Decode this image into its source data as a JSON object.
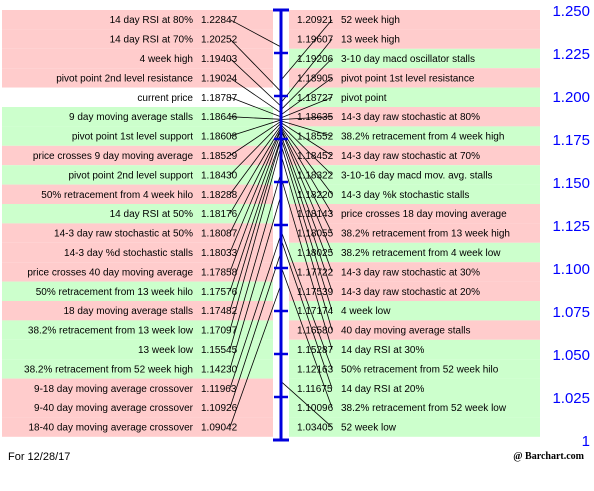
{
  "chart_data": {
    "type": "cheat-sheet",
    "date_label": "For 12/28/17",
    "watermark": "@ Barchart.com",
    "ylim": [
      1.0,
      1.25
    ],
    "ticks": [
      "1.250",
      "1.225",
      "1.200",
      "1.175",
      "1.150",
      "1.125",
      "1.100",
      "1.075",
      "1.050",
      "1.025",
      "1"
    ],
    "tick_values": [
      1.25,
      1.225,
      1.2,
      1.175,
      1.15,
      1.125,
      1.1,
      1.075,
      1.05,
      1.025,
      1.0
    ],
    "current_price": 1.18787,
    "colors": {
      "resistance_bg": "#ffcccc",
      "support_bg": "#ccffcc",
      "axis": "#0000dd",
      "tick_text": "#0000ff"
    },
    "left": [
      {
        "label": "14 day RSI at 80%",
        "value": "1.22847",
        "type": "res"
      },
      {
        "label": "14 day RSI at 70%",
        "value": "1.20252",
        "type": "res"
      },
      {
        "label": "4 week high",
        "value": "1.19403",
        "type": "res"
      },
      {
        "label": "pivot point 2nd level resistance",
        "value": "1.19024",
        "type": "res"
      },
      {
        "label": "current price",
        "value": "1.18787",
        "type": "cur"
      },
      {
        "label": "9 day moving average stalls",
        "value": "1.18646",
        "type": "sup"
      },
      {
        "label": "pivot point 1st level support",
        "value": "1.18608",
        "type": "sup"
      },
      {
        "label": "price crosses 9 day moving average",
        "value": "1.18529",
        "type": "res"
      },
      {
        "label": "pivot point 2nd level support",
        "value": "1.18430",
        "type": "sup"
      },
      {
        "label": "50% retracement from 4 week hilo",
        "value": "1.18288",
        "type": "res"
      },
      {
        "label": "14 day RSI at 50%",
        "value": "1.18176",
        "type": "sup"
      },
      {
        "label": "14-3 day raw stochastic at 50%",
        "value": "1.18087",
        "type": "res"
      },
      {
        "label": "14-3 day %d stochastic stalls",
        "value": "1.18033",
        "type": "res"
      },
      {
        "label": "price crosses 40 day moving average",
        "value": "1.17858",
        "type": "res"
      },
      {
        "label": "50% retracement from 13 week hilo",
        "value": "1.17576",
        "type": "sup"
      },
      {
        "label": "18 day moving average stalls",
        "value": "1.17482",
        "type": "res"
      },
      {
        "label": "38.2% retracement from 13 week low",
        "value": "1.17097",
        "type": "sup"
      },
      {
        "label": "13 week low",
        "value": "1.15545",
        "type": "sup"
      },
      {
        "label": "38.2% retracement from 52 week high",
        "value": "1.14230",
        "type": "sup"
      },
      {
        "label": "9-18 day moving average crossover",
        "value": "1.11963",
        "type": "res"
      },
      {
        "label": "9-40 day moving average crossover",
        "value": "1.10926",
        "type": "res"
      },
      {
        "label": "18-40 day moving average crossover",
        "value": "1.09042",
        "type": "res"
      }
    ],
    "right": [
      {
        "label": "52 week high",
        "value": "1.20921",
        "type": "res"
      },
      {
        "label": "13 week high",
        "value": "1.19607",
        "type": "res"
      },
      {
        "label": "3-10 day macd oscillator stalls",
        "value": "1.19206",
        "type": "sup"
      },
      {
        "label": "pivot point 1st level resistance",
        "value": "1.18905",
        "type": "res"
      },
      {
        "label": "pivot point",
        "value": "1.18727",
        "type": "sup"
      },
      {
        "label": "14-3 day raw stochastic at 80%",
        "value": "1.18635",
        "type": "res"
      },
      {
        "label": "38.2% retracement from 4 week high",
        "value": "1.18552",
        "type": "sup"
      },
      {
        "label": "14-3 day raw stochastic at 70%",
        "value": "1.18452",
        "type": "res"
      },
      {
        "label": "3-10-16 day macd mov. avg. stalls",
        "value": "1.18322",
        "type": "sup"
      },
      {
        "label": "14-3 day %k stochastic stalls",
        "value": "1.18220",
        "type": "sup"
      },
      {
        "label": "price crosses 18 day moving average",
        "value": "1.18143",
        "type": "res"
      },
      {
        "label": "38.2% retracement from 13 week high",
        "value": "1.18055",
        "type": "res"
      },
      {
        "label": "38.2% retracement from 4 week low",
        "value": "1.18025",
        "type": "sup"
      },
      {
        "label": "14-3 day raw stochastic at 30%",
        "value": "1.17722",
        "type": "res"
      },
      {
        "label": "14-3 day raw stochastic at 20%",
        "value": "1.17539",
        "type": "res"
      },
      {
        "label": "4 week low",
        "value": "1.17174",
        "type": "sup"
      },
      {
        "label": "40 day moving average stalls",
        "value": "1.16580",
        "type": "res"
      },
      {
        "label": "14 day RSI at 30%",
        "value": "1.15287",
        "type": "sup"
      },
      {
        "label": "50% retracement from 52 week hilo",
        "value": "1.12163",
        "type": "sup"
      },
      {
        "label": "14 day RSI at 20%",
        "value": "1.11675",
        "type": "sup"
      },
      {
        "label": "38.2% retracement from 52 week low",
        "value": "1.10096",
        "type": "sup"
      },
      {
        "label": "52 week low",
        "value": "1.03405",
        "type": "sup"
      }
    ]
  }
}
